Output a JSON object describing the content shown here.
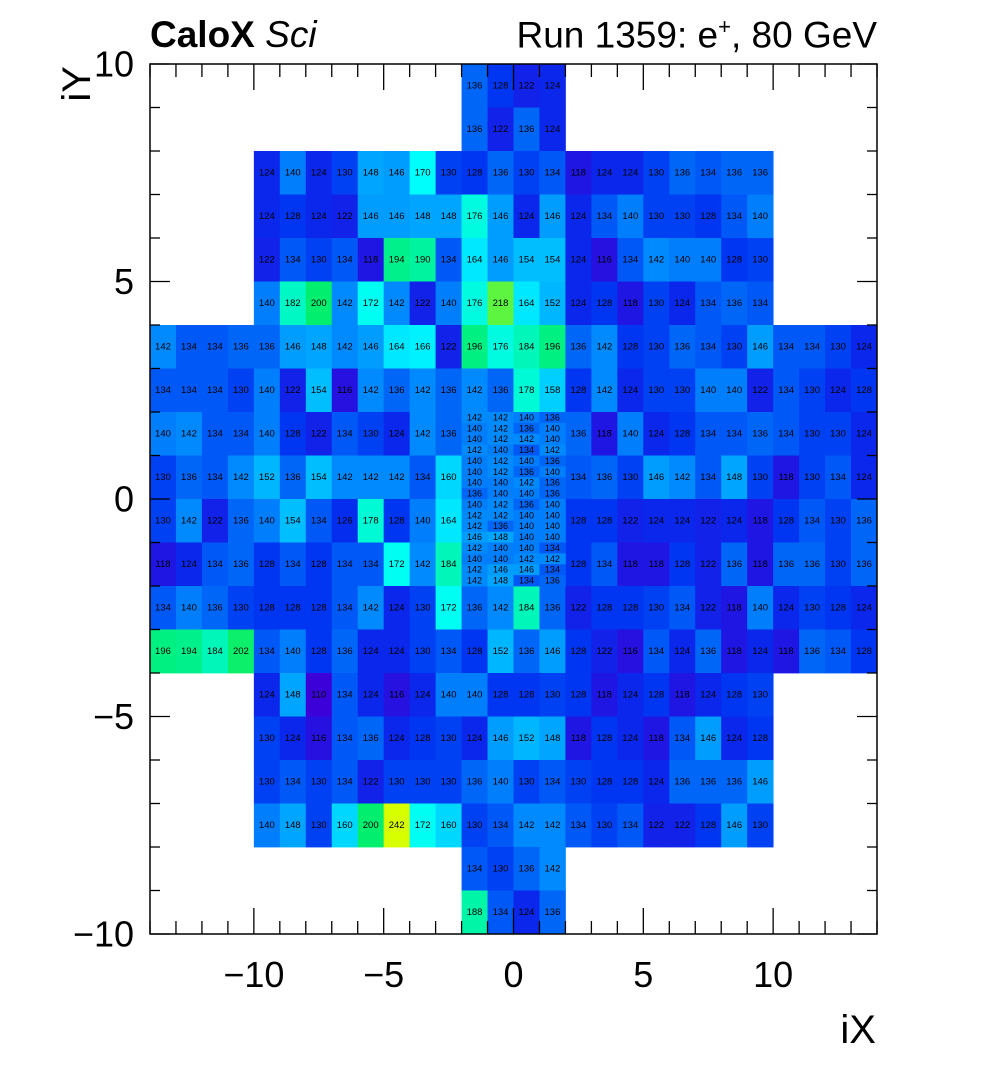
{
  "header": {
    "brand": "CaloX",
    "brand_sub": "Sci",
    "run_prefix": "Run 1359: e",
    "run_sup": "+",
    "run_suffix": ", 80 GeV"
  },
  "chart_data": {
    "type": "heatmap",
    "xlabel": "iX",
    "ylabel": "iY",
    "xlim": [
      -14,
      14
    ],
    "ylim": [
      -10,
      10
    ],
    "xticks": [
      -10,
      -5,
      0,
      5,
      10
    ],
    "yticks": [
      -10,
      -5,
      0,
      5,
      10
    ],
    "colors": {
      "low": "#3c00d8",
      "mid1": "#0030f0",
      "mid2": "#0090ff",
      "mid3": "#00ffff",
      "mid4": "#00ee70",
      "high": "#d8ff00"
    },
    "value_range": [
      110,
      242
    ],
    "grid": false,
    "rows": [
      {
        "y0": 9,
        "y1": 10,
        "x0": -2,
        "w": 1,
        "v": [
          136,
          128,
          122,
          124
        ]
      },
      {
        "y0": 8,
        "y1": 9,
        "x0": -2,
        "w": 1,
        "v": [
          136,
          122,
          136,
          124
        ]
      },
      {
        "y0": 7,
        "y1": 8,
        "x0": -10,
        "w": 1,
        "v": [
          124,
          140,
          124,
          130,
          148,
          146,
          170,
          130,
          128,
          136,
          130,
          134,
          118,
          124,
          124,
          130,
          136,
          134,
          136,
          136
        ]
      },
      {
        "y0": 6,
        "y1": 7,
        "x0": -10,
        "w": 1,
        "v": [
          124,
          128,
          124,
          122,
          146,
          146,
          148,
          148,
          176,
          146,
          124,
          146,
          124,
          134,
          140,
          130,
          130,
          128,
          134,
          140
        ]
      },
      {
        "y0": 5,
        "y1": 6,
        "x0": -10,
        "w": 1,
        "v": [
          122,
          134,
          130,
          134,
          118,
          194,
          190,
          134,
          164,
          146,
          154,
          154,
          124,
          116,
          134,
          142,
          140,
          140,
          128,
          130
        ]
      },
      {
        "y0": 4,
        "y1": 5,
        "x0": -10,
        "w": 1,
        "v": [
          140,
          182,
          200,
          142,
          172,
          142,
          122,
          140,
          176,
          218,
          164,
          152,
          124,
          128,
          118,
          130,
          124,
          134,
          136,
          134
        ]
      },
      {
        "y0": 3,
        "y1": 4,
        "x0": -14,
        "w": 1,
        "v": [
          142,
          134,
          134,
          136,
          136,
          146,
          148,
          142,
          146,
          164,
          166,
          122,
          196,
          176,
          184,
          196,
          136,
          142,
          128,
          130,
          136,
          134,
          130,
          146,
          134,
          134,
          130,
          124
        ]
      },
      {
        "y0": 2,
        "y1": 3,
        "x0": -14,
        "w": 1,
        "v": [
          134,
          134,
          134,
          130,
          140,
          122,
          154,
          116,
          142,
          136,
          142,
          136,
          142,
          136,
          178,
          158,
          128,
          142,
          124,
          130,
          130,
          140,
          140,
          122,
          134,
          130,
          124,
          128
        ]
      },
      {
        "y0": 1,
        "y1": 2,
        "x0": -14,
        "w": 1,
        "v": [
          140,
          142,
          134,
          134,
          140,
          128,
          122,
          134,
          130,
          124,
          142,
          136,
          null,
          null,
          null,
          null,
          136,
          118,
          140,
          124,
          128,
          134,
          134,
          136,
          134,
          130,
          130,
          124
        ]
      },
      {
        "y0": 0,
        "y1": 1,
        "x0": -14,
        "w": 1,
        "v": [
          130,
          136,
          134,
          142,
          152,
          136,
          154,
          142,
          142,
          142,
          134,
          160,
          null,
          null,
          null,
          null,
          134,
          136,
          130,
          146,
          142,
          134,
          148,
          130,
          118,
          130,
          134,
          124
        ]
      },
      {
        "y0": -1,
        "y1": 0,
        "x0": -14,
        "w": 1,
        "v": [
          130,
          142,
          122,
          136,
          140,
          154,
          134,
          126,
          178,
          128,
          140,
          164,
          null,
          null,
          null,
          null,
          128,
          128,
          122,
          124,
          124,
          122,
          124,
          118,
          128,
          134,
          130,
          136
        ]
      },
      {
        "y0": -2,
        "y1": -1,
        "x0": -14,
        "w": 1,
        "v": [
          118,
          124,
          134,
          136,
          128,
          134,
          128,
          134,
          134,
          172,
          142,
          184,
          null,
          null,
          null,
          null,
          128,
          134,
          118,
          118,
          128,
          122,
          136,
          118,
          136,
          136,
          130,
          136
        ]
      },
      {
        "y0": -3,
        "y1": -2,
        "x0": -14,
        "w": 1,
        "v": [
          134,
          140,
          136,
          130,
          128,
          128,
          128,
          134,
          142,
          124,
          130,
          172,
          136,
          142,
          184,
          136,
          122,
          128,
          128,
          130,
          134,
          122,
          118,
          140,
          124,
          130,
          128,
          124
        ]
      },
      {
        "y0": -4,
        "y1": -3,
        "x0": -14,
        "w": 1,
        "v": [
          196,
          194,
          184,
          202,
          134,
          140,
          128,
          136,
          124,
          124,
          130,
          134,
          128,
          152,
          136,
          146,
          128,
          122,
          116,
          134,
          124,
          136,
          118,
          124,
          118,
          136,
          134,
          128
        ]
      },
      {
        "y0": -5,
        "y1": -4,
        "x0": -10,
        "w": 1,
        "v": [
          124,
          148,
          110,
          134,
          124,
          116,
          124,
          140,
          140,
          128,
          128,
          130,
          128,
          118,
          124,
          128,
          118,
          124,
          128,
          130
        ]
      },
      {
        "y0": -6,
        "y1": -5,
        "x0": -10,
        "w": 1,
        "v": [
          130,
          124,
          116,
          134,
          136,
          124,
          128,
          130,
          124,
          146,
          152,
          148,
          118,
          128,
          124,
          118,
          134,
          146,
          124,
          128
        ]
      },
      {
        "y0": -7,
        "y1": -6,
        "x0": -10,
        "w": 1,
        "v": [
          130,
          134,
          130,
          134,
          122,
          130,
          130,
          130,
          136,
          140,
          130,
          134,
          130,
          128,
          128,
          124,
          136,
          136,
          136,
          146
        ]
      },
      {
        "y0": -8,
        "y1": -7,
        "x0": -10,
        "w": 1,
        "v": [
          140,
          148,
          130,
          160,
          200,
          242,
          172,
          160,
          130,
          134,
          142,
          142,
          134,
          130,
          134,
          122,
          122,
          128,
          146,
          130
        ]
      },
      {
        "y0": -9,
        "y1": -8,
        "x0": -2,
        "w": 1,
        "v": [
          134,
          130,
          136,
          142
        ]
      },
      {
        "y0": -10,
        "y1": -9,
        "x0": -2,
        "w": 1,
        "v": [
          188,
          134,
          124,
          136
        ]
      },
      {
        "y0": 1.75,
        "y1": 2,
        "x0": -2,
        "w": 1,
        "v": [
          142,
          142,
          140,
          136
        ]
      },
      {
        "y0": 1.5,
        "y1": 1.75,
        "x0": -2,
        "w": 1,
        "v": [
          140,
          142,
          136,
          140
        ]
      },
      {
        "y0": 1.25,
        "y1": 1.5,
        "x0": -2,
        "w": 1,
        "v": [
          140,
          142,
          142,
          140
        ]
      },
      {
        "y0": 1,
        "y1": 1.25,
        "x0": -2,
        "w": 1,
        "v": [
          142,
          140,
          134,
          142
        ]
      },
      {
        "y0": 0.75,
        "y1": 1,
        "x0": -2,
        "w": 1,
        "v": [
          140,
          142,
          140,
          136
        ]
      },
      {
        "y0": 0.5,
        "y1": 0.75,
        "x0": -2,
        "w": 1,
        "v": [
          140,
          142,
          136,
          140
        ]
      },
      {
        "y0": 0.25,
        "y1": 0.5,
        "x0": -2,
        "w": 1,
        "v": [
          140,
          140,
          142,
          136
        ]
      },
      {
        "y0": 0,
        "y1": 0.25,
        "x0": -2,
        "w": 1,
        "v": [
          136,
          140,
          140,
          136
        ]
      },
      {
        "y0": -0.25,
        "y1": 0,
        "x0": -2,
        "w": 1,
        "v": [
          140,
          142,
          136,
          140
        ]
      },
      {
        "y0": -0.5,
        "y1": -0.25,
        "x0": -2,
        "w": 1,
        "v": [
          142,
          142,
          140,
          140
        ]
      },
      {
        "y0": -0.75,
        "y1": -0.5,
        "x0": -2,
        "w": 1,
        "v": [
          142,
          136,
          140,
          140
        ]
      },
      {
        "y0": -1,
        "y1": -0.75,
        "x0": -2,
        "w": 1,
        "v": [
          146,
          148,
          140,
          140
        ]
      },
      {
        "y0": -1.25,
        "y1": -1,
        "x0": -2,
        "w": 1,
        "v": [
          142,
          140,
          140,
          134
        ]
      },
      {
        "y0": -1.5,
        "y1": -1.25,
        "x0": -2,
        "w": 1,
        "v": [
          140,
          140,
          142,
          142
        ]
      },
      {
        "y0": -1.75,
        "y1": -1.5,
        "x0": -2,
        "w": 1,
        "v": [
          142,
          146,
          146,
          134
        ]
      },
      {
        "y0": -2,
        "y1": -1.75,
        "x0": -2,
        "w": 1,
        "v": [
          142,
          148,
          134,
          136
        ]
      }
    ]
  }
}
